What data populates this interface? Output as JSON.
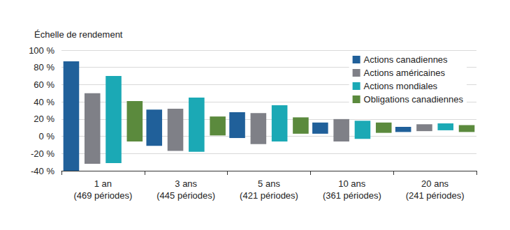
{
  "chart_data": {
    "type": "range_bar",
    "ylabel": "Échelle de rendement",
    "categories": [
      "1 an\n(469 périodes)",
      "3 ans\n(445 périodes)",
      "5 ans\n(421 périodes)",
      "10 ans\n(361 périodes)",
      "20 ans\n(241 périodes)"
    ],
    "series": [
      {
        "name": "Actions canadiennes",
        "color": "#20609a",
        "values": [
          [
            -40,
            87
          ],
          [
            -11,
            31
          ],
          [
            -2,
            28
          ],
          [
            3,
            16
          ],
          [
            5,
            11
          ]
        ]
      },
      {
        "name": "Actions américaines",
        "color": "#7f8087",
        "values": [
          [
            -32,
            50
          ],
          [
            -17,
            32
          ],
          [
            -9,
            27
          ],
          [
            -6,
            20
          ],
          [
            6,
            14
          ]
        ]
      },
      {
        "name": "Actions mondiales",
        "color": "#1ba9b5",
        "values": [
          [
            -31,
            70
          ],
          [
            -18,
            45
          ],
          [
            -6,
            36
          ],
          [
            -3,
            18
          ],
          [
            7,
            15
          ]
        ]
      },
      {
        "name": "Obligations canadiennes",
        "color": "#5b8a3d",
        "values": [
          [
            -6,
            41
          ],
          [
            1,
            23
          ],
          [
            3,
            22
          ],
          [
            4,
            16
          ],
          [
            5,
            13
          ]
        ]
      }
    ],
    "ylim": [
      -40,
      100
    ],
    "yticks": [
      {
        "value": -40,
        "label": "-40 %"
      },
      {
        "value": -20,
        "label": "-20 %"
      },
      {
        "value": 0,
        "label": "0 %"
      },
      {
        "value": 20,
        "label": "20 %"
      },
      {
        "value": 40,
        "label": "40 %"
      },
      {
        "value": 60,
        "label": "60 %"
      },
      {
        "value": 80,
        "label": "80 %"
      },
      {
        "value": 100,
        "label": "100 %"
      }
    ],
    "grid": true,
    "legend": "top-right"
  }
}
